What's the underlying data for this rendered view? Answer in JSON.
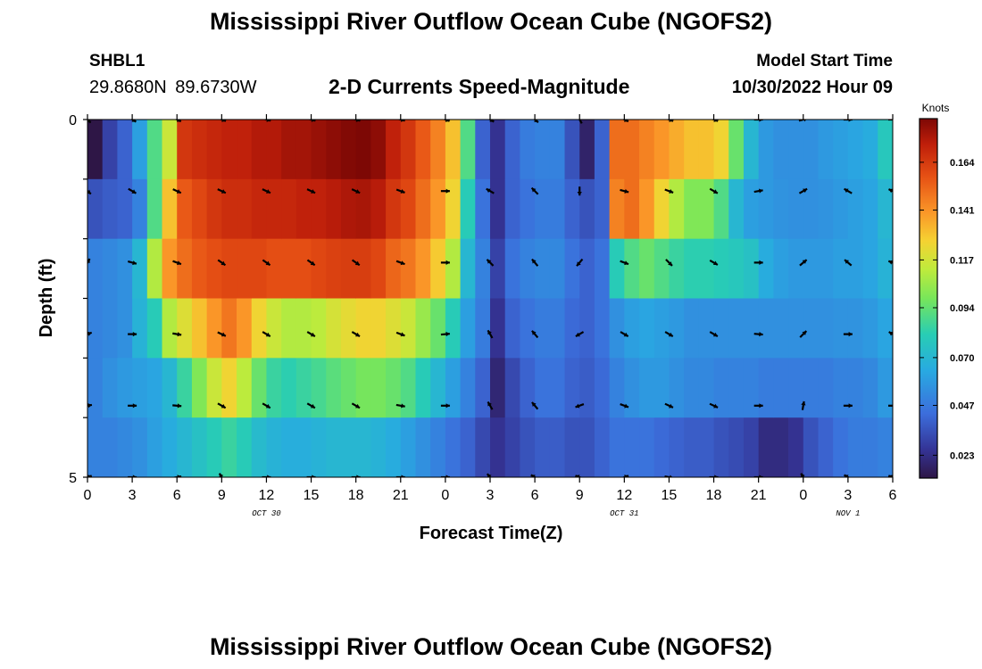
{
  "figure": {
    "title": "Mississippi River Outflow Ocean Cube (NGOFS2)",
    "repeated_title": "Mississippi River Outflow Ocean Cube (NGOFS2)",
    "station_id": "SHBL1",
    "coordinates": "29.8680N  89.6730W",
    "plot_title": "2-D Currents Speed-Magnitude",
    "model_start_label": "Model Start Time",
    "model_start_value": "10/30/2022 Hour 09"
  },
  "chart_data": {
    "type": "heatmap",
    "xlabel": "Forecast Time(Z)",
    "ylabel": "Depth (ft)",
    "x_tick_labels": [
      "0",
      "3",
      "6",
      "9",
      "12",
      "15",
      "18",
      "21",
      "0",
      "3",
      "6",
      "9",
      "12",
      "15",
      "18",
      "21",
      "0",
      "3",
      "6"
    ],
    "x_range": [
      0,
      54
    ],
    "date_labels": [
      {
        "label": "OCT 30",
        "x": 12
      },
      {
        "label": "OCT 31",
        "x": 36
      },
      {
        "label": "NOV 1",
        "x": 51
      }
    ],
    "y_tick_labels": [
      "0",
      "5"
    ],
    "y_range": [
      0,
      5
    ],
    "depth_layers": 6,
    "colorbar": {
      "label": "Knots",
      "ticks": [
        0.023,
        0.047,
        0.07,
        0.094,
        0.117,
        0.141,
        0.164
      ],
      "range": [
        0.012,
        0.185
      ]
    },
    "speed_columns": [
      {
        "x": 0,
        "layers": [
          0.012,
          0.035,
          0.05,
          0.05,
          0.05,
          0.05
        ]
      },
      {
        "x": 1,
        "layers": [
          0.03,
          0.038,
          0.052,
          0.052,
          0.055,
          0.05
        ]
      },
      {
        "x": 2,
        "layers": [
          0.04,
          0.04,
          0.055,
          0.055,
          0.058,
          0.052
        ]
      },
      {
        "x": 3,
        "layers": [
          0.06,
          0.05,
          0.07,
          0.068,
          0.06,
          0.055
        ]
      },
      {
        "x": 4,
        "layers": [
          0.09,
          0.09,
          0.11,
          0.08,
          0.062,
          0.06
        ]
      },
      {
        "x": 5,
        "layers": [
          0.115,
          0.13,
          0.14,
          0.11,
          0.07,
          0.065
        ]
      },
      {
        "x": 6,
        "layers": [
          0.165,
          0.155,
          0.15,
          0.12,
          0.085,
          0.07
        ]
      },
      {
        "x": 7,
        "layers": [
          0.168,
          0.16,
          0.155,
          0.13,
          0.1,
          0.075
        ]
      },
      {
        "x": 8,
        "layers": [
          0.17,
          0.165,
          0.158,
          0.14,
          0.115,
          0.08
        ]
      },
      {
        "x": 9,
        "layers": [
          0.172,
          0.168,
          0.16,
          0.148,
          0.125,
          0.085
        ]
      },
      {
        "x": 10,
        "layers": [
          0.172,
          0.168,
          0.16,
          0.14,
          0.112,
          0.08
        ]
      },
      {
        "x": 11,
        "layers": [
          0.175,
          0.17,
          0.16,
          0.125,
          0.095,
          0.072
        ]
      },
      {
        "x": 12,
        "layers": [
          0.175,
          0.17,
          0.158,
          0.115,
          0.085,
          0.068
        ]
      },
      {
        "x": 13,
        "layers": [
          0.178,
          0.17,
          0.158,
          0.11,
          0.082,
          0.066
        ]
      },
      {
        "x": 14,
        "layers": [
          0.178,
          0.172,
          0.158,
          0.11,
          0.085,
          0.066
        ]
      },
      {
        "x": 15,
        "layers": [
          0.18,
          0.172,
          0.16,
          0.112,
          0.088,
          0.068
        ]
      },
      {
        "x": 16,
        "layers": [
          0.182,
          0.174,
          0.162,
          0.118,
          0.092,
          0.07
        ]
      },
      {
        "x": 17,
        "layers": [
          0.184,
          0.176,
          0.163,
          0.122,
          0.095,
          0.07
        ]
      },
      {
        "x": 18,
        "layers": [
          0.185,
          0.177,
          0.163,
          0.125,
          0.098,
          0.07
        ]
      },
      {
        "x": 19,
        "layers": [
          0.182,
          0.174,
          0.16,
          0.125,
          0.098,
          0.068
        ]
      },
      {
        "x": 20,
        "layers": [
          0.172,
          0.165,
          0.152,
          0.12,
          0.095,
          0.065
        ]
      },
      {
        "x": 21,
        "layers": [
          0.165,
          0.16,
          0.148,
          0.115,
          0.09,
          0.06
        ]
      },
      {
        "x": 22,
        "layers": [
          0.155,
          0.15,
          0.14,
          0.105,
          0.08,
          0.055
        ]
      },
      {
        "x": 23,
        "layers": [
          0.145,
          0.14,
          0.128,
          0.095,
          0.07,
          0.05
        ]
      },
      {
        "x": 24,
        "layers": [
          0.13,
          0.125,
          0.11,
          0.08,
          0.06,
          0.045
        ]
      },
      {
        "x": 25,
        "layers": [
          0.09,
          0.08,
          0.07,
          0.06,
          0.05,
          0.04
        ]
      },
      {
        "x": 26,
        "layers": [
          0.04,
          0.045,
          0.05,
          0.048,
          0.04,
          0.032
        ]
      },
      {
        "x": 27,
        "layers": [
          0.025,
          0.025,
          0.03,
          0.025,
          0.02,
          0.025
        ]
      },
      {
        "x": 28,
        "layers": [
          0.04,
          0.04,
          0.045,
          0.04,
          0.032,
          0.03
        ]
      },
      {
        "x": 29,
        "layers": [
          0.048,
          0.045,
          0.05,
          0.045,
          0.04,
          0.035
        ]
      },
      {
        "x": 30,
        "layers": [
          0.05,
          0.048,
          0.052,
          0.048,
          0.045,
          0.038
        ]
      },
      {
        "x": 31,
        "layers": [
          0.05,
          0.048,
          0.052,
          0.048,
          0.045,
          0.038
        ]
      },
      {
        "x": 32,
        "layers": [
          0.035,
          0.04,
          0.045,
          0.042,
          0.04,
          0.035
        ]
      },
      {
        "x": 33,
        "layers": [
          0.018,
          0.035,
          0.04,
          0.04,
          0.038,
          0.035
        ]
      },
      {
        "x": 34,
        "layers": [
          0.04,
          0.04,
          0.045,
          0.045,
          0.042,
          0.04
        ]
      },
      {
        "x": 35,
        "layers": [
          0.15,
          0.145,
          0.08,
          0.055,
          0.05,
          0.045
        ]
      },
      {
        "x": 36,
        "layers": [
          0.15,
          0.15,
          0.09,
          0.06,
          0.055,
          0.045
        ]
      },
      {
        "x": 37,
        "layers": [
          0.145,
          0.14,
          0.095,
          0.062,
          0.058,
          0.045
        ]
      },
      {
        "x": 38,
        "layers": [
          0.14,
          0.125,
          0.09,
          0.06,
          0.058,
          0.042
        ]
      },
      {
        "x": 39,
        "layers": [
          0.135,
          0.11,
          0.085,
          0.058,
          0.055,
          0.04
        ]
      },
      {
        "x": 40,
        "layers": [
          0.13,
          0.1,
          0.082,
          0.055,
          0.052,
          0.038
        ]
      },
      {
        "x": 41,
        "layers": [
          0.13,
          0.1,
          0.082,
          0.055,
          0.052,
          0.038
        ]
      },
      {
        "x": 42,
        "layers": [
          0.125,
          0.09,
          0.08,
          0.055,
          0.05,
          0.035
        ]
      },
      {
        "x": 43,
        "layers": [
          0.095,
          0.07,
          0.078,
          0.055,
          0.05,
          0.033
        ]
      },
      {
        "x": 44,
        "layers": [
          0.07,
          0.06,
          0.075,
          0.055,
          0.05,
          0.03
        ]
      },
      {
        "x": 45,
        "layers": [
          0.058,
          0.058,
          0.065,
          0.055,
          0.048,
          0.022
        ]
      },
      {
        "x": 46,
        "layers": [
          0.055,
          0.056,
          0.06,
          0.055,
          0.048,
          0.022
        ]
      },
      {
        "x": 47,
        "layers": [
          0.055,
          0.055,
          0.058,
          0.055,
          0.048,
          0.025
        ]
      },
      {
        "x": 48,
        "layers": [
          0.055,
          0.055,
          0.058,
          0.055,
          0.048,
          0.035
        ]
      },
      {
        "x": 49,
        "layers": [
          0.058,
          0.056,
          0.058,
          0.055,
          0.048,
          0.04
        ]
      },
      {
        "x": 50,
        "layers": [
          0.06,
          0.058,
          0.06,
          0.056,
          0.05,
          0.045
        ]
      },
      {
        "x": 51,
        "layers": [
          0.062,
          0.06,
          0.06,
          0.056,
          0.05,
          0.048
        ]
      },
      {
        "x": 52,
        "layers": [
          0.065,
          0.062,
          0.062,
          0.058,
          0.052,
          0.048
        ]
      },
      {
        "x": 53,
        "layers": [
          0.078,
          0.07,
          0.068,
          0.062,
          0.058,
          0.05
        ]
      }
    ],
    "vectors": {
      "x": [
        0,
        3,
        6,
        9,
        12,
        15,
        18,
        21,
        24,
        27,
        30,
        33,
        36,
        39,
        42,
        45,
        48,
        51,
        54
      ],
      "depth_rows": [
        0,
        1,
        2,
        3,
        4,
        5
      ],
      "direction_deg": [
        [
          -45,
          -30,
          -25,
          -20,
          -15,
          -15,
          -15,
          -15,
          -20,
          -30,
          -40,
          120,
          -25,
          -20,
          -20,
          0,
          15,
          0,
          0
        ],
        [
          -40,
          -30,
          -25,
          -25,
          -25,
          -25,
          -25,
          -20,
          0,
          150,
          135,
          -90,
          -15,
          -20,
          -30,
          10,
          30,
          150,
          155
        ],
        [
          60,
          -15,
          -20,
          -35,
          -35,
          -35,
          -35,
          -20,
          0,
          135,
          130,
          230,
          -20,
          -45,
          -30,
          0,
          40,
          140,
          160
        ],
        [
          20,
          0,
          -10,
          -25,
          -30,
          -30,
          -30,
          -20,
          5,
          120,
          130,
          210,
          -30,
          -30,
          -30,
          -5,
          45,
          0,
          150
        ],
        [
          10,
          0,
          -5,
          -30,
          -30,
          -30,
          -30,
          -10,
          0,
          120,
          130,
          200,
          -20,
          -25,
          -25,
          0,
          80,
          0,
          0
        ],
        [
          20,
          0,
          10,
          120,
          0,
          0,
          0,
          0,
          0,
          130,
          150,
          160,
          20,
          -10,
          0,
          0,
          120,
          150,
          160
        ]
      ]
    },
    "grid": false
  }
}
